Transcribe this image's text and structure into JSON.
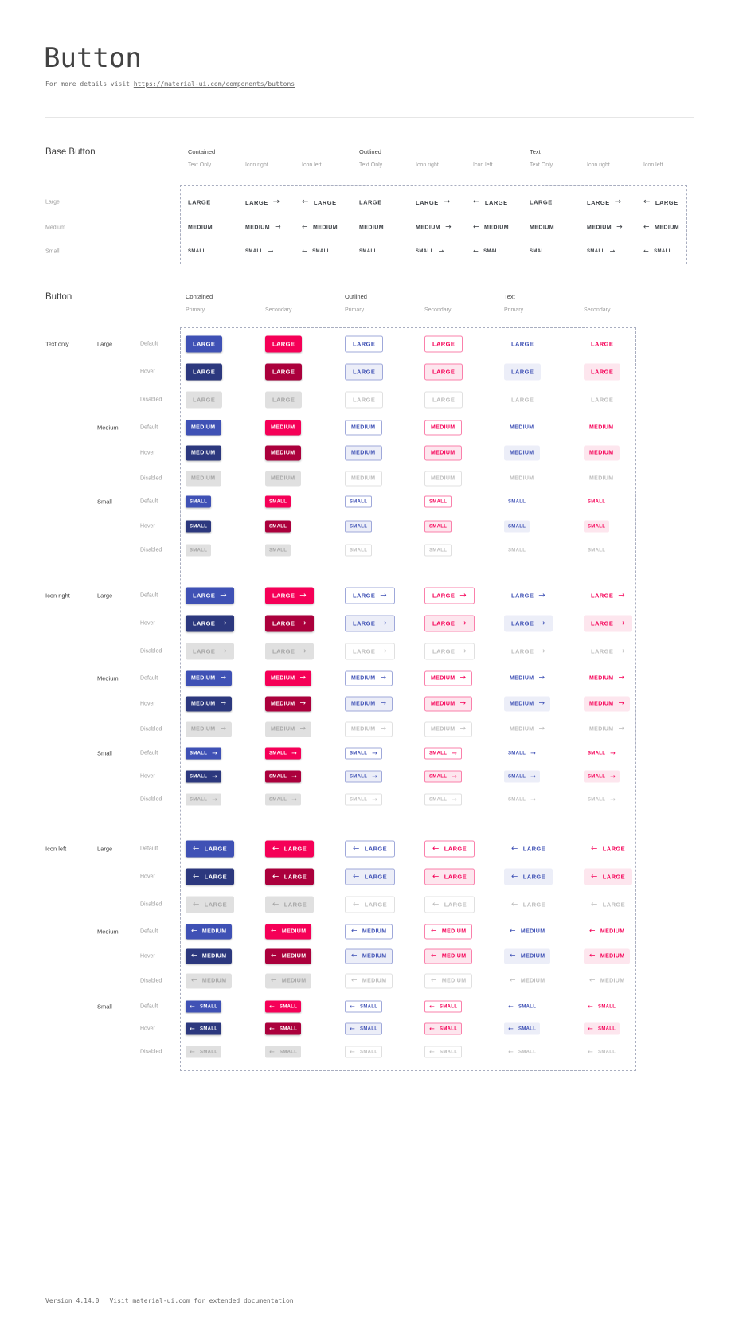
{
  "page": {
    "title": "Button",
    "subtitle_prefix": "For more details visit ",
    "subtitle_link": "https://material-ui.com/components/buttons",
    "footer_version": "Version 4.14.0",
    "footer_note": "Visit material-ui.com for extended documentation"
  },
  "icons": {
    "arrow-right": "→",
    "arrow-left": "←"
  },
  "colors": {
    "primary": "#3f51b5",
    "primary_hover": "#2c387e",
    "primary_tint": "#eceef8",
    "outlined_primary_border": "#9fa8da",
    "secondary": "#f50057",
    "secondary_hover": "#ab003c",
    "secondary_tint": "#fde6ee",
    "outlined_secondary_border": "#fa80ab",
    "disabled_bg": "#e0e0e0",
    "disabled_text": "#a6a6a6",
    "disabled_text_light": "#bdbdbd",
    "outlined_disabled_border": "#e0e0e0",
    "base_button_text": "#3c4045",
    "label_dark": "#424242",
    "label_gray": "#9e9e9e",
    "divider": "#e6e6e6",
    "dashed_border": "#a9aec0",
    "title_text": "#424242",
    "mono_text": "#696969"
  },
  "base_section": {
    "heading": "Base Button",
    "groups": [
      "Contained",
      "Outlined",
      "Text"
    ],
    "subcolumns": [
      "Text Only",
      "Icon right",
      "Icon left"
    ],
    "rows": [
      {
        "label": "Large",
        "text": "LARGE"
      },
      {
        "label": "Medium",
        "text": "MEDIUM"
      },
      {
        "label": "Small",
        "text": "SMALL"
      }
    ]
  },
  "button_section": {
    "heading": "Button",
    "groups": [
      "Contained",
      "Outlined",
      "Text"
    ],
    "subcolumns": [
      "Primary",
      "Secondary"
    ],
    "row_groups": [
      {
        "label": "Text only",
        "icon": "none"
      },
      {
        "label": "Icon right",
        "icon": "right"
      },
      {
        "label": "Icon left",
        "icon": "left"
      }
    ],
    "sizes": [
      {
        "label": "Large",
        "text": "LARGE"
      },
      {
        "label": "Medium",
        "text": "MEDIUM"
      },
      {
        "label": "Small",
        "text": "SMALL"
      }
    ],
    "states": [
      "Default",
      "Hover",
      "Disabled"
    ]
  }
}
